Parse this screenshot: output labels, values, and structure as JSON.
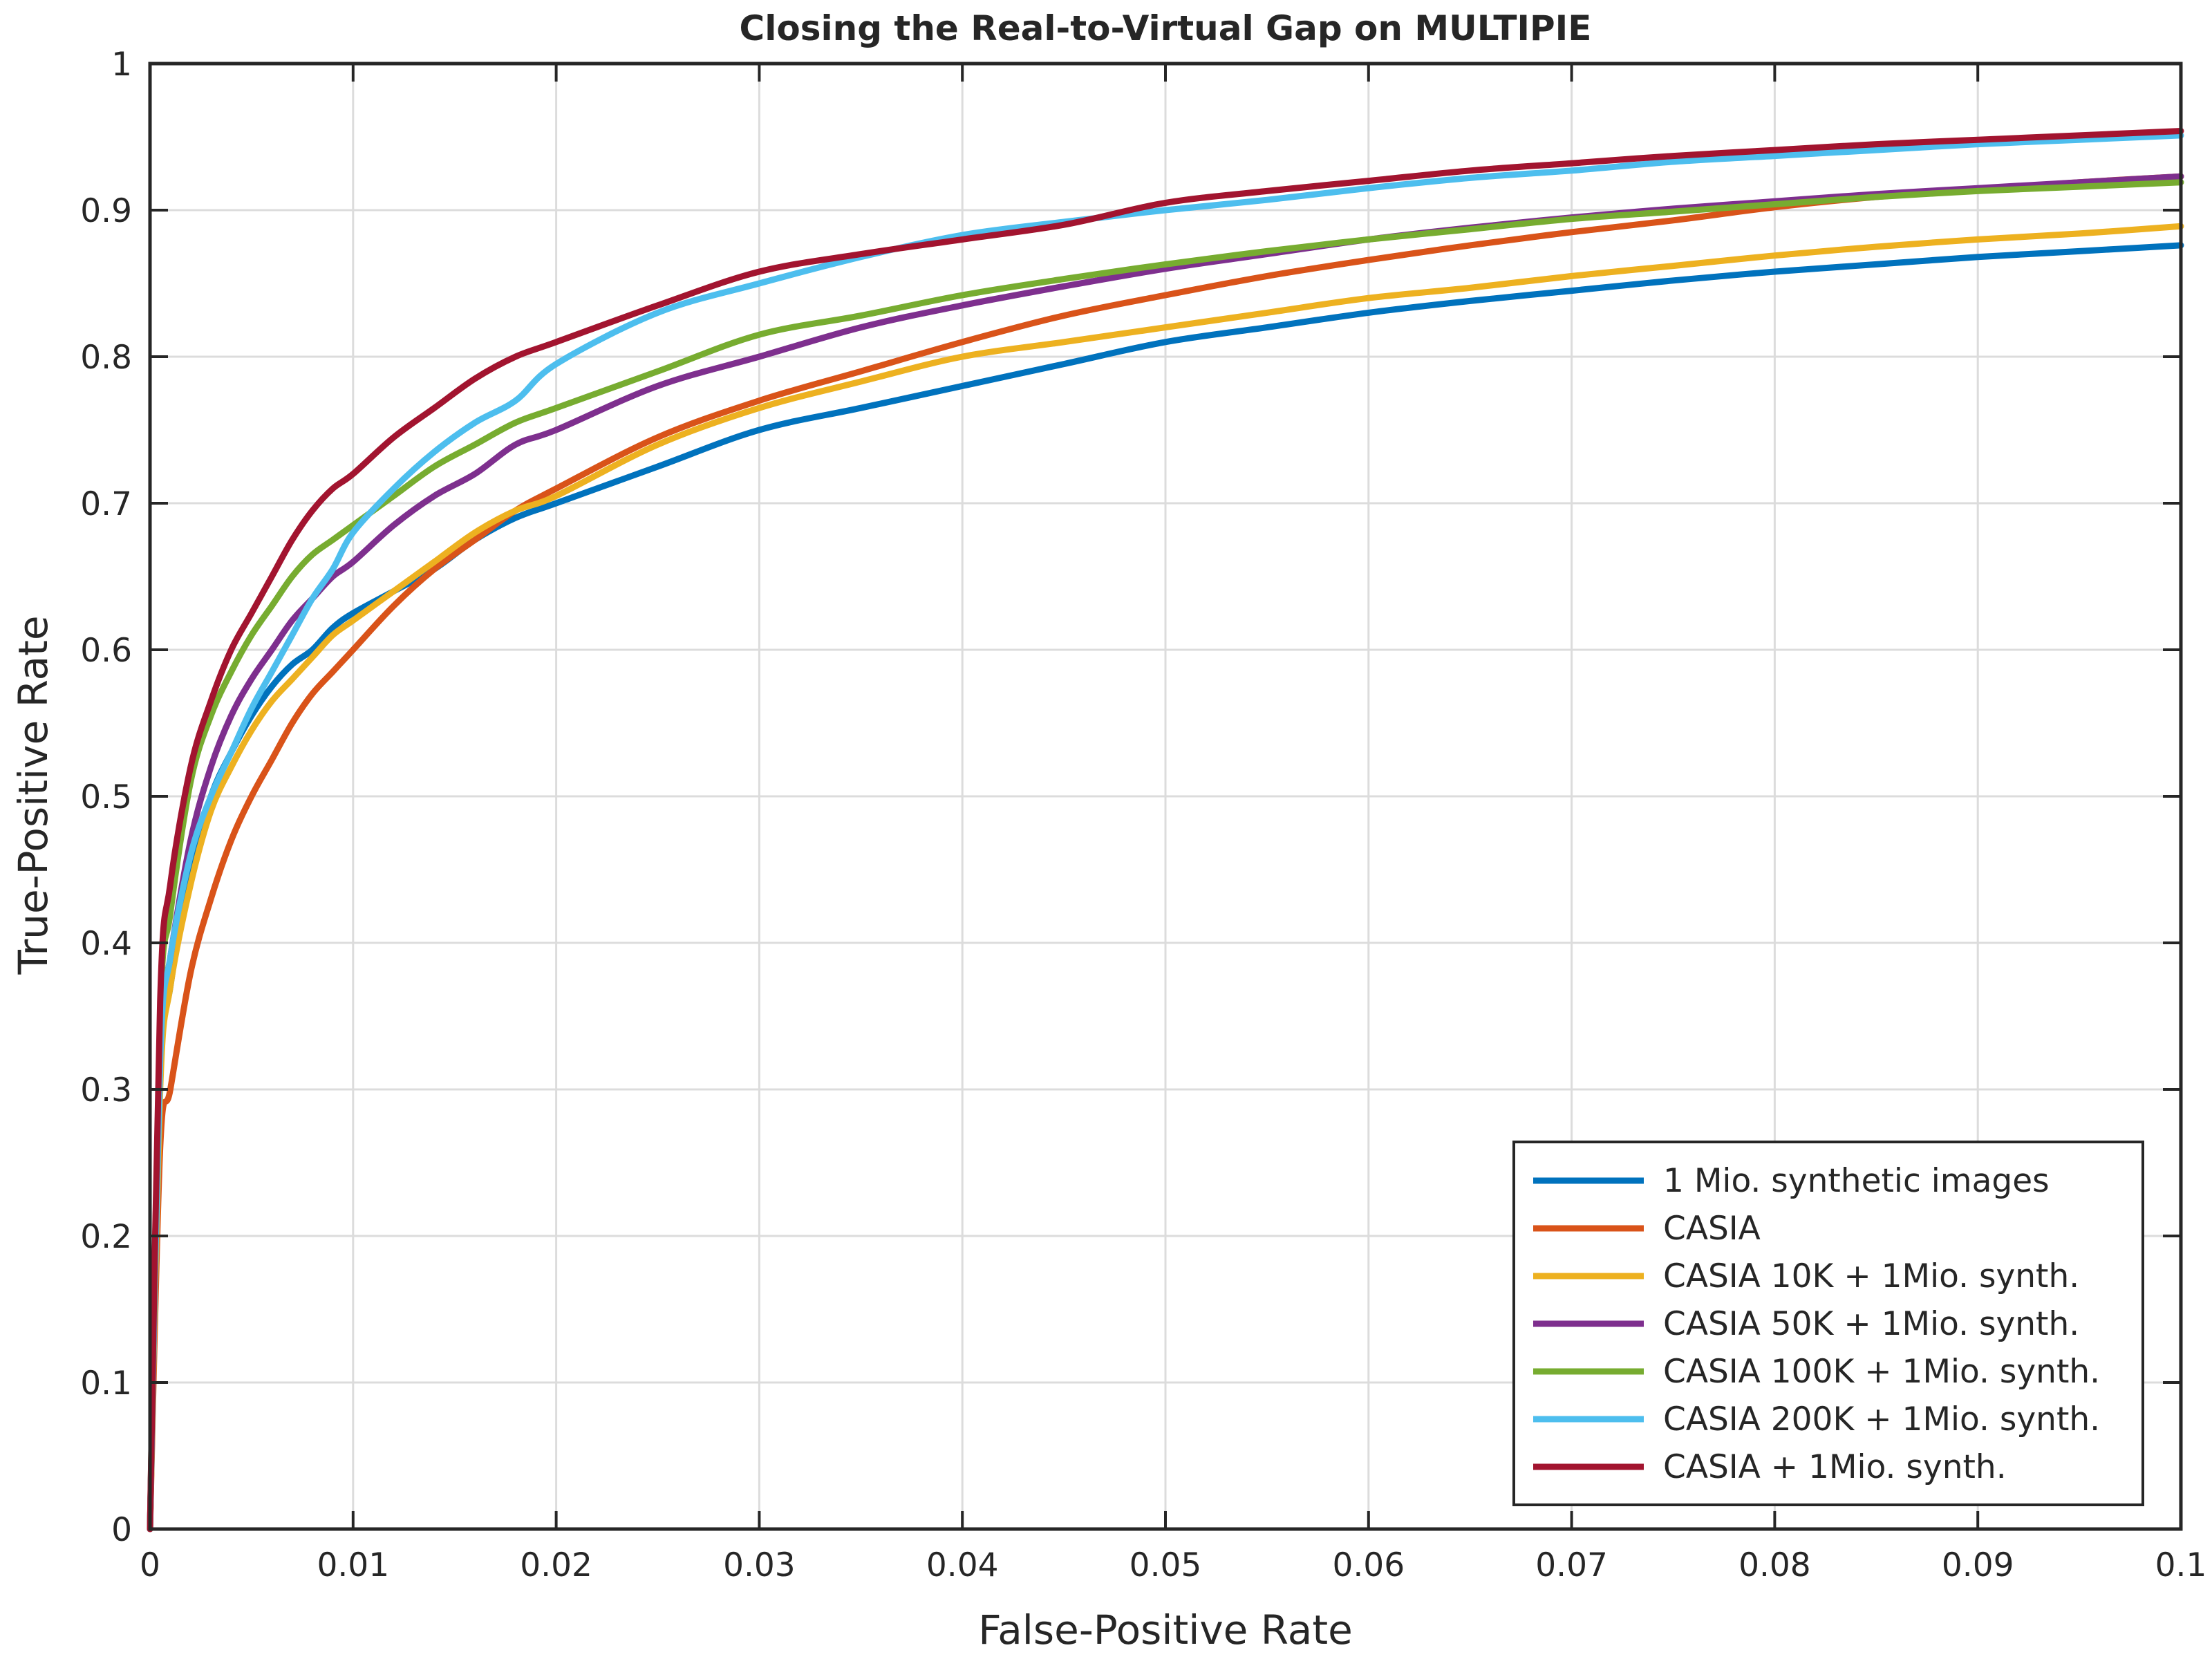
{
  "chart_data": {
    "type": "line",
    "title": "Closing the Real-to-Virtual Gap on MULTIPIE",
    "xlabel": "False-Positive Rate",
    "ylabel": "True-Positive Rate",
    "xlim": [
      0,
      0.1
    ],
    "ylim": [
      0,
      1
    ],
    "grid": true,
    "legend_position": "bottom-right",
    "x_ticks": [
      "0",
      "0.01",
      "0.02",
      "0.03",
      "0.04",
      "0.05",
      "0.06",
      "0.07",
      "0.08",
      "0.09",
      "0.1"
    ],
    "y_ticks": [
      "0",
      "0.1",
      "0.2",
      "0.3",
      "0.4",
      "0.5",
      "0.6",
      "0.7",
      "0.8",
      "0.9",
      "1"
    ],
    "x": [
      0,
      0.0005,
      0.001,
      0.002,
      0.003,
      0.004,
      0.005,
      0.006,
      0.007,
      0.008,
      0.009,
      0.01,
      0.012,
      0.014,
      0.016,
      0.018,
      0.02,
      0.025,
      0.03,
      0.035,
      0.04,
      0.045,
      0.05,
      0.055,
      0.06,
      0.065,
      0.07,
      0.075,
      0.08,
      0.085,
      0.09,
      0.095,
      0.1
    ],
    "series": [
      {
        "name": "1 Mio. synthetic images",
        "color": "#0072BD",
        "values": [
          0,
          0.31,
          0.37,
          0.45,
          0.5,
          0.53,
          0.555,
          0.575,
          0.59,
          0.6,
          0.615,
          0.625,
          0.64,
          0.655,
          0.675,
          0.69,
          0.7,
          0.725,
          0.75,
          0.765,
          0.78,
          0.795,
          0.81,
          0.82,
          0.83,
          0.838,
          0.845,
          0.852,
          0.858,
          0.863,
          0.868,
          0.872,
          0.876
        ]
      },
      {
        "name": "CASIA",
        "color": "#D95319",
        "values": [
          0,
          0.26,
          0.3,
          0.38,
          0.43,
          0.47,
          0.5,
          0.525,
          0.55,
          0.57,
          0.585,
          0.6,
          0.63,
          0.655,
          0.675,
          0.695,
          0.71,
          0.745,
          0.77,
          0.79,
          0.81,
          0.828,
          0.842,
          0.855,
          0.866,
          0.876,
          0.885,
          0.893,
          0.902,
          0.909,
          0.914,
          0.919,
          0.923
        ]
      },
      {
        "name": "CASIA 10K + 1Mio. synth.",
        "color": "#EDB120",
        "values": [
          0,
          0.3,
          0.37,
          0.44,
          0.49,
          0.52,
          0.545,
          0.565,
          0.58,
          0.595,
          0.61,
          0.62,
          0.64,
          0.66,
          0.68,
          0.695,
          0.705,
          0.74,
          0.765,
          0.783,
          0.8,
          0.81,
          0.82,
          0.83,
          0.84,
          0.847,
          0.855,
          0.862,
          0.869,
          0.875,
          0.88,
          0.884,
          0.889
        ]
      },
      {
        "name": "CASIA 50K + 1Mio. synth.",
        "color": "#7E2F8E",
        "values": [
          0,
          0.33,
          0.39,
          0.47,
          0.52,
          0.555,
          0.58,
          0.6,
          0.62,
          0.635,
          0.65,
          0.66,
          0.685,
          0.705,
          0.72,
          0.74,
          0.75,
          0.78,
          0.8,
          0.82,
          0.835,
          0.848,
          0.86,
          0.87,
          0.88,
          0.888,
          0.895,
          0.901,
          0.906,
          0.911,
          0.915,
          0.919,
          0.923
        ]
      },
      {
        "name": "CASIA 100K + 1Mio. synth.",
        "color": "#77AC30",
        "values": [
          0,
          0.35,
          0.42,
          0.51,
          0.555,
          0.585,
          0.61,
          0.63,
          0.65,
          0.665,
          0.675,
          0.685,
          0.705,
          0.725,
          0.74,
          0.755,
          0.765,
          0.79,
          0.815,
          0.828,
          0.842,
          0.853,
          0.863,
          0.872,
          0.88,
          0.887,
          0.894,
          0.899,
          0.904,
          0.909,
          0.913,
          0.916,
          0.919
        ]
      },
      {
        "name": "CASIA 200K + 1Mio. synth.",
        "color": "#4DBEEE",
        "values": [
          0,
          0.32,
          0.39,
          0.46,
          0.5,
          0.53,
          0.56,
          0.585,
          0.61,
          0.635,
          0.655,
          0.68,
          0.71,
          0.735,
          0.755,
          0.77,
          0.795,
          0.83,
          0.85,
          0.868,
          0.883,
          0.892,
          0.9,
          0.907,
          0.915,
          0.922,
          0.927,
          0.933,
          0.937,
          0.941,
          0.945,
          0.948,
          0.951
        ]
      },
      {
        "name": "CASIA + 1Mio. synth.",
        "color": "#A2142F",
        "values": [
          0,
          0.36,
          0.44,
          0.52,
          0.565,
          0.6,
          0.625,
          0.65,
          0.675,
          0.695,
          0.71,
          0.72,
          0.745,
          0.765,
          0.785,
          0.8,
          0.81,
          0.835,
          0.858,
          0.87,
          0.88,
          0.89,
          0.905,
          0.913,
          0.92,
          0.927,
          0.932,
          0.937,
          0.941,
          0.945,
          0.948,
          0.951,
          0.954
        ]
      }
    ]
  }
}
